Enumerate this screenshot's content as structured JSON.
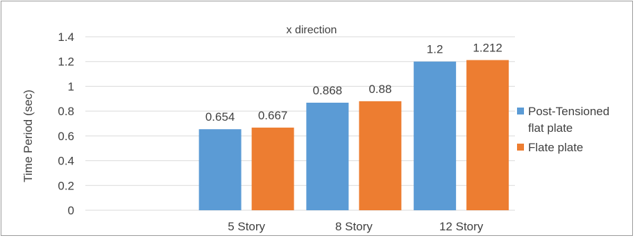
{
  "chart_data": {
    "type": "bar",
    "title": "x direction",
    "ylabel": "Time Period (sec)",
    "xlabel": "",
    "categories": [
      "5 Story",
      "8 Story",
      "12 Story"
    ],
    "series": [
      {
        "name": "Post-Tensioned flat plate",
        "name_lines": [
          "Post-Tensioned",
          "flat plate"
        ],
        "color": "#5b9bd5",
        "values": [
          0.654,
          0.868,
          1.2
        ]
      },
      {
        "name": "Flate plate",
        "name_lines": [
          "Flate plate"
        ],
        "color": "#ed7d31",
        "values": [
          0.667,
          0.88,
          1.212
        ]
      }
    ],
    "data_labels": [
      [
        "0.654",
        "0.868",
        "1.2"
      ],
      [
        "0.667",
        "0.88",
        "1.212"
      ]
    ],
    "ylim": [
      0,
      1.4
    ],
    "yticks": [
      0,
      0.2,
      0.4,
      0.6,
      0.8,
      1,
      1.2,
      1.4
    ],
    "ytick_labels": [
      "0",
      "0.2",
      "0.4",
      "0.6",
      "0.8",
      "1",
      "1.2",
      "1.4"
    ],
    "grid": true,
    "legend_position": "right",
    "gridline_color": "#d9d9d9",
    "text_color": "#404040"
  }
}
